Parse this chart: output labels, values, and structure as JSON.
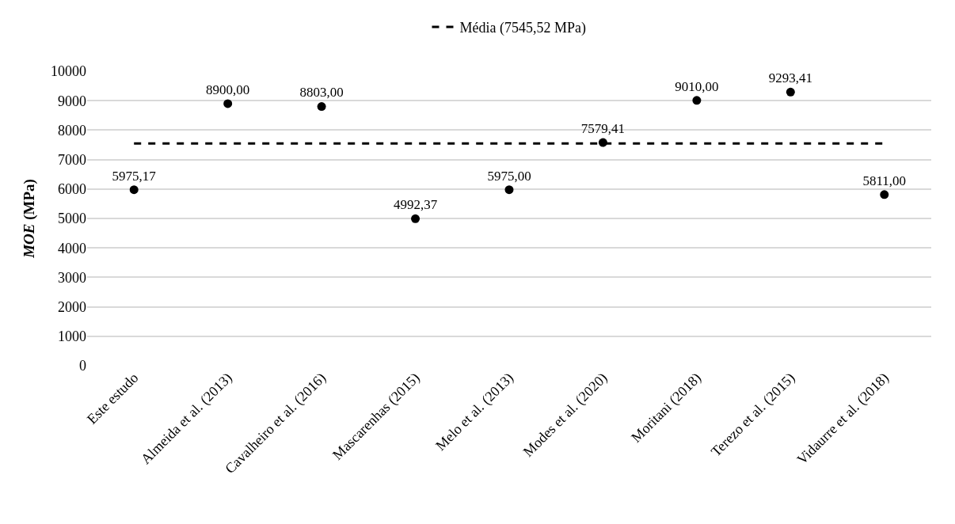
{
  "chart_data": {
    "type": "scatter",
    "ylabel": "MOE (MPa)",
    "categories": [
      "Este estudo",
      "Almeida et al. (2013)",
      "Cavalheiro et al. (2016)",
      "Mascarenhas (2015)",
      "Melo et al. (2013)",
      "Modes et al. (2020)",
      "Moritani (2018)",
      "Terezo et al. (2015)",
      "Vidaurre et al. (2018)"
    ],
    "values": [
      5975.17,
      8900.0,
      8803.0,
      4992.37,
      5975.0,
      7579.41,
      9010.0,
      9293.41,
      5811.0
    ],
    "value_labels": [
      "5975,17",
      "8900,00",
      "8803,00",
      "4992,37",
      "5975,00",
      "7579,41",
      "9010,00",
      "9293,41",
      "5811,00"
    ],
    "color": "#000000",
    "marker": "circle",
    "ylim": [
      0,
      10000
    ],
    "yticks": [
      0,
      1000,
      2000,
      3000,
      4000,
      5000,
      6000,
      7000,
      8000,
      9000,
      10000
    ],
    "grid": "y",
    "ref_lines": [
      {
        "axis": "y",
        "value": 7545.52,
        "label": "Média (7545,52 MPa)",
        "color": "#000000",
        "line_style": "dashed"
      }
    ],
    "legend": "top"
  }
}
